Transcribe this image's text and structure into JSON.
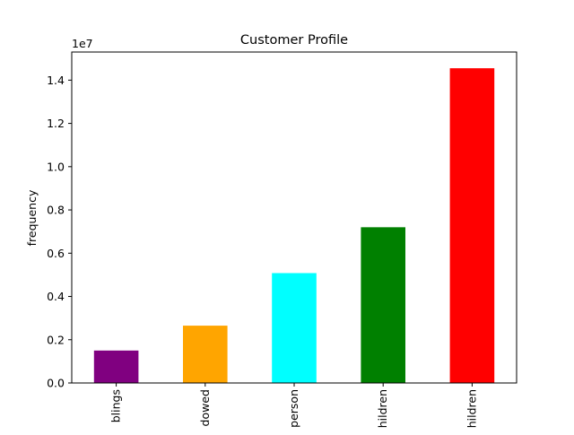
{
  "chart_data": {
    "type": "bar",
    "title": "Customer Profile",
    "xlabel": "",
    "ylabel": "frequency",
    "y_offset_label": "1e7",
    "y_scale": 10000000,
    "ylim": [
      0,
      15300000
    ],
    "yticks": [
      0,
      2000000,
      4000000,
      6000000,
      8000000,
      10000000,
      12000000,
      14000000
    ],
    "ytick_labels": [
      "0.0",
      "0.2",
      "0.4",
      "0.6",
      "0.8",
      "1.0",
      "1.2",
      "1.4"
    ],
    "categories": [
      "blings",
      "dowed",
      "person",
      "hildren",
      "hildren"
    ],
    "values": [
      1500000,
      2650000,
      5080000,
      7200000,
      14550000
    ],
    "colors": [
      "#800080",
      "#ffa500",
      "#00ffff",
      "#008000",
      "#ff0000"
    ],
    "grid": false,
    "legend": "none"
  }
}
